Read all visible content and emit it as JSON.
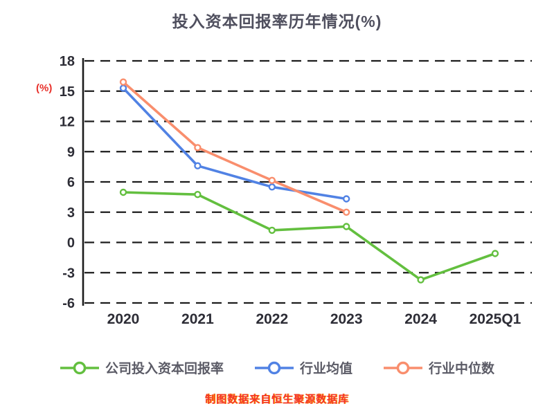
{
  "chart_data": {
    "type": "line",
    "title": "投入资本回报率历年情况(%)",
    "categories": [
      "2020",
      "2021",
      "2022",
      "2023",
      "2024",
      "2025Q1"
    ],
    "y_ticks": [
      18,
      15,
      12,
      9,
      6,
      3,
      0,
      -3,
      -6
    ],
    "ylim": [
      -6,
      18
    ],
    "ylabel": "(%)",
    "grid": "horizontal-dashed",
    "legend_position": "bottom",
    "series": [
      {
        "name": "公司投入资本回报率",
        "color": "#63bf3f",
        "values": [
          4.97,
          4.75,
          1.21,
          1.58,
          -3.71,
          -1.1
        ]
      },
      {
        "name": "行业均值",
        "color": "#5182e4",
        "values": [
          15.3,
          7.6,
          5.5,
          4.32,
          null,
          null
        ]
      },
      {
        "name": "行业中位数",
        "color": "#f98e6d",
        "values": [
          15.9,
          9.4,
          6.15,
          3.0,
          null,
          null
        ]
      }
    ]
  },
  "source_note": "制图数据来自恒生聚源数据库"
}
